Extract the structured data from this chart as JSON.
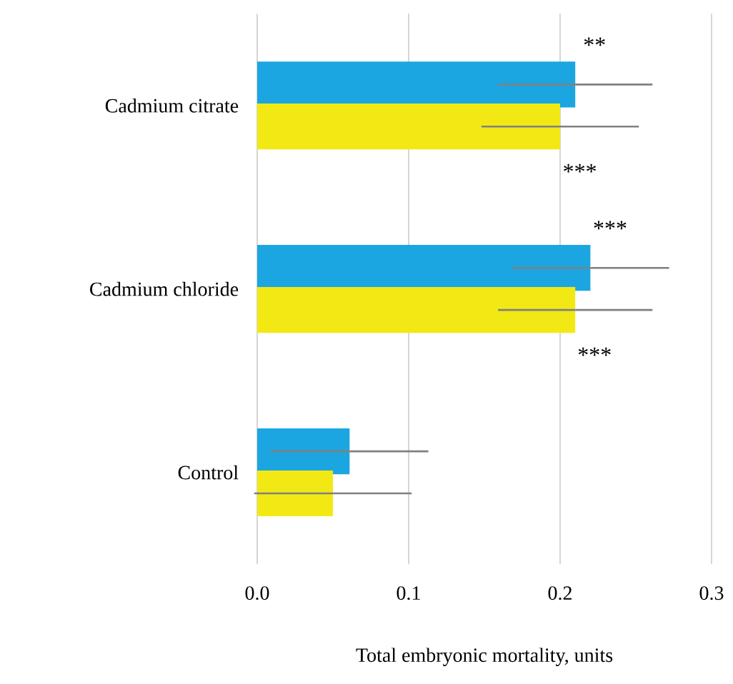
{
  "chart_data": {
    "type": "bar",
    "orientation": "horizontal",
    "xlabel": "Total embryonic mortality, units",
    "categories": [
      "Cadmium citrate",
      "Cadmium chloride",
      "Control"
    ],
    "series": [
      {
        "color": "#1ba6e1",
        "values": [
          0.21,
          0.22,
          0.061
        ],
        "errors": [
          0.051,
          0.052,
          0.052
        ]
      },
      {
        "color": "#f2e914",
        "values": [
          0.2,
          0.21,
          0.05
        ],
        "errors": [
          0.052,
          0.051,
          0.052
        ]
      }
    ],
    "xlim": [
      0,
      0.3
    ],
    "xticks": [
      {
        "value": 0,
        "label": "0.0"
      },
      {
        "value": 0.1,
        "label": "0.1"
      },
      {
        "value": 0.2,
        "label": "0.2"
      },
      {
        "value": 0.3,
        "label": "0.3"
      }
    ],
    "grid": "x",
    "annotations": [
      "**",
      "***",
      "***",
      "***"
    ]
  }
}
